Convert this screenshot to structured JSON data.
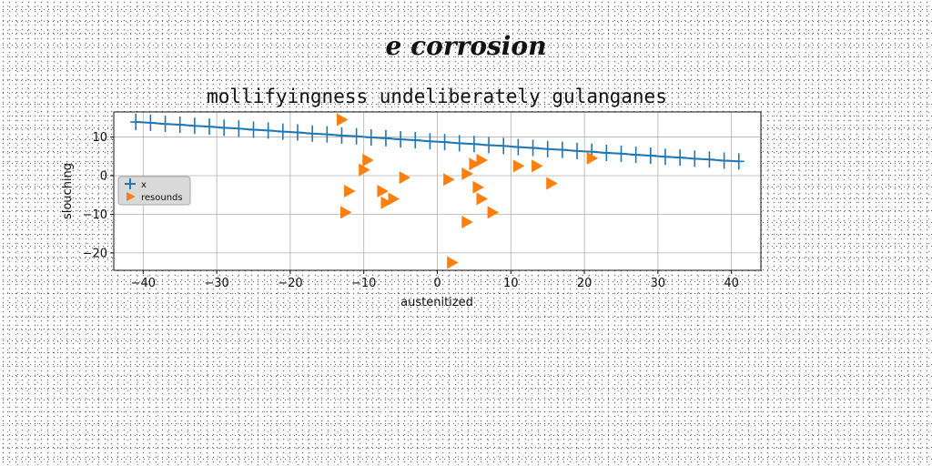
{
  "page_title": "e corrosion",
  "chart_data": {
    "type": "scatter",
    "title": "mollifyingness undeliberately gulanganes",
    "xlabel": "austenitized",
    "ylabel": "slouching",
    "xlim": [
      -44,
      44
    ],
    "ylim": [
      -24.5,
      16.5
    ],
    "xticks": [
      -40,
      -30,
      -20,
      -10,
      0,
      10,
      20,
      30,
      40
    ],
    "yticks": [
      -20,
      -10,
      0,
      10
    ],
    "grid": true,
    "legend_position": "center-left",
    "series": [
      {
        "name": "x",
        "style": "line-with-plus-markers",
        "color": "#1f77b4",
        "x": [
          -41.0,
          -39.0,
          -37.0,
          -35.0,
          -33.0,
          -31.0,
          -29.0,
          -27.0,
          -25.0,
          -23.0,
          -21.0,
          -19.0,
          -17.0,
          -15.0,
          -13.0,
          -11.0,
          -9.0,
          -7.0,
          -5.0,
          -3.0,
          -1.0,
          1.0,
          3.0,
          5.0,
          7.0,
          9.0,
          11.0,
          13.0,
          15.0,
          17.0,
          19.0,
          21.0,
          23.0,
          25.0,
          27.0,
          29.0,
          31.0,
          33.0,
          35.0,
          37.0,
          39.0,
          41.0
        ],
        "y": [
          13.9,
          13.7,
          13.4,
          13.2,
          12.9,
          12.7,
          12.4,
          12.2,
          11.9,
          11.7,
          11.4,
          11.2,
          10.9,
          10.7,
          10.4,
          10.2,
          9.9,
          9.7,
          9.4,
          9.2,
          8.9,
          8.7,
          8.4,
          8.2,
          7.9,
          7.7,
          7.4,
          7.2,
          6.9,
          6.7,
          6.4,
          6.2,
          5.9,
          5.7,
          5.4,
          5.2,
          4.9,
          4.7,
          4.4,
          4.2,
          3.9,
          3.7
        ]
      },
      {
        "name": "resounds",
        "style": "triangle-right-markers",
        "color": "#ff7f0e",
        "x": [
          -13,
          -9.5,
          -10,
          -12,
          -7.5,
          -6,
          -7,
          -4.5,
          -12.5,
          2,
          1.5,
          4,
          5,
          6,
          5.5,
          6,
          4,
          7.5,
          11,
          13.5,
          15.5,
          21
        ],
        "y": [
          14.5,
          4,
          1.5,
          -4,
          -4,
          -6,
          -7,
          -0.5,
          -9.5,
          -22.5,
          -1,
          0.5,
          3,
          4,
          -3,
          -6,
          -12,
          -9.5,
          2.5,
          2.5,
          -2,
          4.5
        ]
      }
    ]
  }
}
